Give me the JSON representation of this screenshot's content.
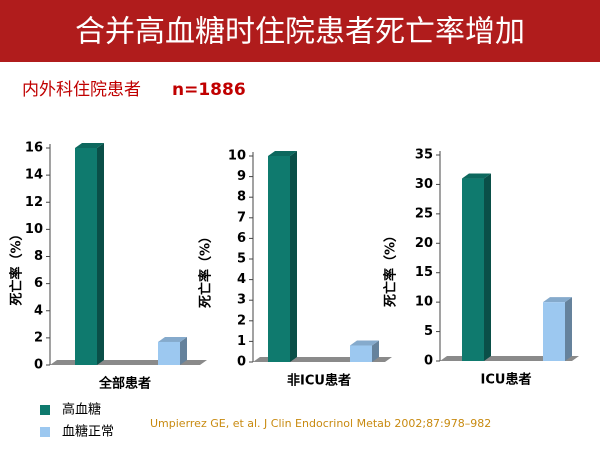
{
  "header": {
    "title": "合并高血糖时住院患者死亡率增加",
    "subtitle": "内外科住院患者",
    "sample": "n=1886"
  },
  "chart_data": [
    {
      "type": "bar",
      "y_label": "死亡率（%）",
      "categories": [
        "全部患者"
      ],
      "series": [
        {
          "name": "高血糖",
          "color": "#0f7a6e",
          "values": [
            16
          ]
        },
        {
          "name": "血糖正常",
          "color": "#9cc8f0",
          "values": [
            1.7
          ]
        }
      ],
      "ylim": [
        0,
        16
      ],
      "yticks": [
        0,
        2,
        4,
        6,
        8,
        10,
        12,
        14,
        16
      ]
    },
    {
      "type": "bar",
      "y_label": "死亡率（%）",
      "categories": [
        "非ICU患者"
      ],
      "series": [
        {
          "name": "高血糖",
          "color": "#0f7a6e",
          "values": [
            10
          ]
        },
        {
          "name": "血糖正常",
          "color": "#9cc8f0",
          "values": [
            0.8
          ]
        }
      ],
      "ylim": [
        0,
        10
      ],
      "yticks": [
        0,
        1,
        2,
        3,
        4,
        5,
        6,
        7,
        8,
        9,
        10
      ]
    },
    {
      "type": "bar",
      "y_label": "死亡率（%）",
      "categories": [
        "ICU患者"
      ],
      "series": [
        {
          "name": "高血糖",
          "color": "#0f7a6e",
          "values": [
            31
          ]
        },
        {
          "name": "血糖正常",
          "color": "#9cc8f0",
          "values": [
            10
          ]
        }
      ],
      "ylim": [
        0,
        35
      ],
      "yticks": [
        0,
        5,
        10,
        15,
        20,
        25,
        30,
        35
      ]
    }
  ],
  "citation": "Umpierrez GE, et al. J Clin Endocrinol Metab 2002;87:978–982"
}
